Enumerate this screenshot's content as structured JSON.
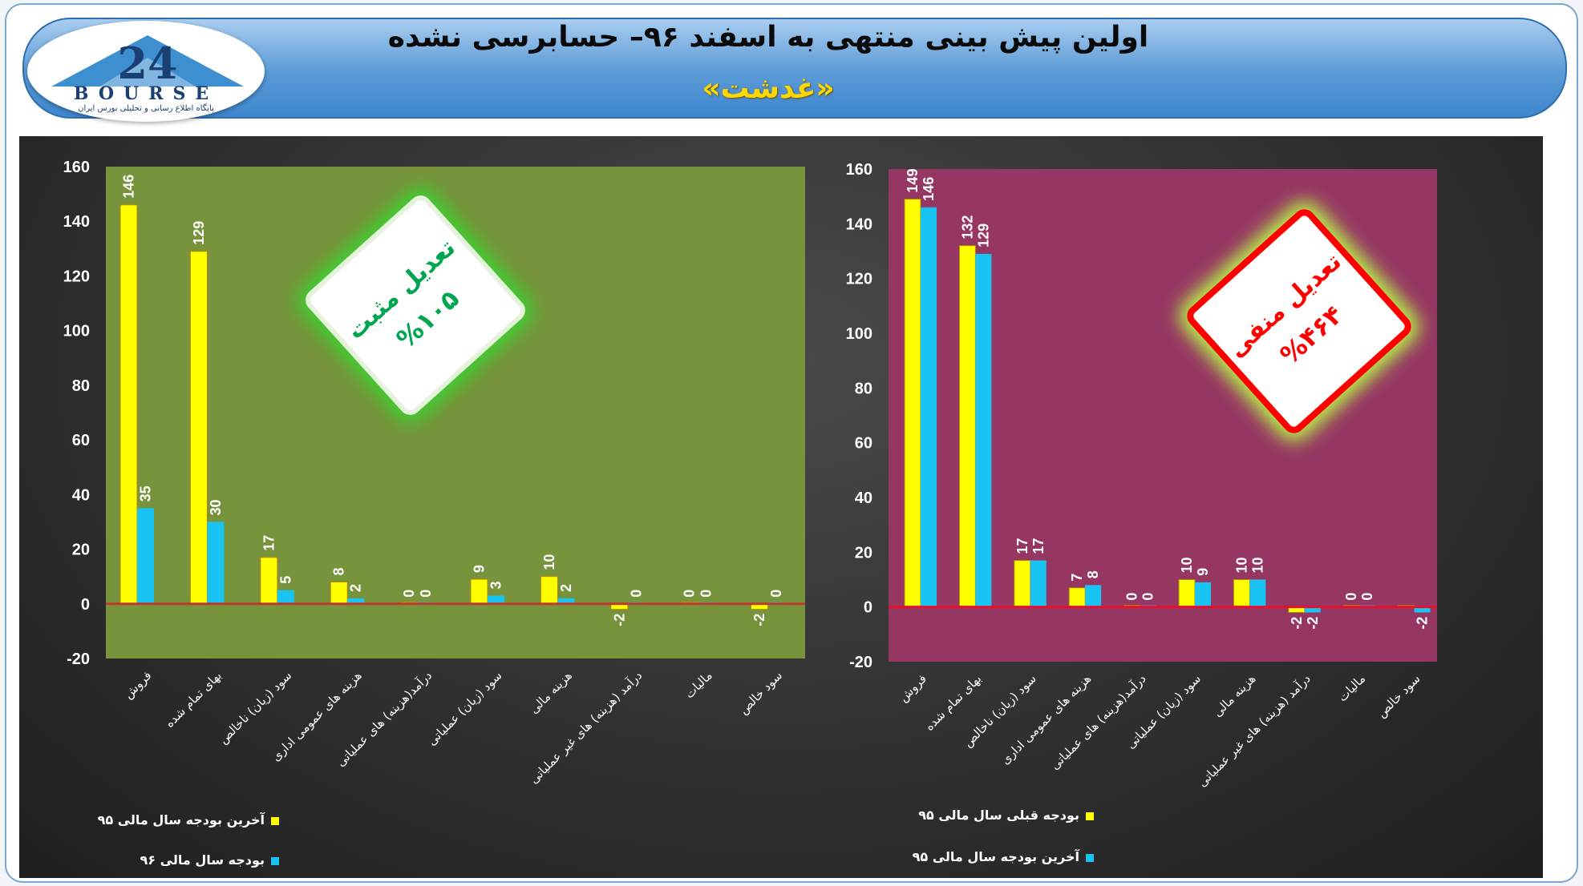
{
  "header": {
    "title": "اولین پیش بینی منتهی به اسفند ۹۶– حسابرسی نشده",
    "company": "«غدشت»",
    "logo_word": "BOURSE",
    "logo_number": "24",
    "logo_tagline": "پایگاه اطلاع رسانی و تحلیلی بورس ایران"
  },
  "colors": {
    "yellow": "#ffff00",
    "cyan": "#19c3f2",
    "green_plot": "#77933c",
    "magenta_plot": "#953762"
  },
  "stamps": {
    "left": {
      "line1": "تعدیل مثبت",
      "line2": "%۱۰۵",
      "color": "#00a550"
    },
    "right": {
      "line1": "تعدیل منفی",
      "line2": "%۴۶۴",
      "color": "#ff0000"
    }
  },
  "chart_data": [
    {
      "type": "bar",
      "background": "#77933c",
      "categories": [
        "فروش",
        "بهای تمام شده",
        "سود (زیان) ناخالص",
        "هزینه های عمومی اداری",
        "درآمد(هزینه) های عملیاتی",
        "سود (زیان) عملیاتی",
        "هزینه مالی",
        "درآمد (هزینه) های غیر عملیاتی",
        "مالیات",
        "سود خالص"
      ],
      "series": [
        {
          "name": "آخرین بودجه سال مالی ۹۵",
          "color": "#ffff00",
          "values": [
            146,
            129,
            17,
            8,
            0,
            9,
            10,
            -2,
            0,
            -2
          ],
          "labels": [
            "146",
            "129",
            "17",
            "8",
            "0",
            "9",
            "10",
            "-2",
            "0",
            "-2"
          ]
        },
        {
          "name": "بودجه سال مالی ۹۶",
          "color": "#19c3f2",
          "values": [
            35,
            30,
            5,
            2,
            0,
            3,
            2,
            0,
            0,
            0
          ],
          "labels": [
            "35",
            "30",
            "5",
            "2",
            "0",
            "3",
            "2",
            "0",
            "0",
            "0"
          ]
        }
      ],
      "yticks": [
        "160",
        "140",
        "120",
        "100",
        "80",
        "60",
        "40",
        "20",
        "0",
        "-20"
      ],
      "ylim": [
        -20,
        160
      ],
      "legend": "bottom-left"
    },
    {
      "type": "bar",
      "background": "#953762",
      "categories": [
        "فروش",
        "بهای تمام شده",
        "سود (زیان) ناخالص",
        "هزینه های عمومی اداری",
        "درآمد(هزینه) های عملیاتی",
        "سود (زیان) عملیاتی",
        "هزینه مالی",
        "درآمد (هزینه) های غیر عملیاتی",
        "مالیات",
        "سود خالص"
      ],
      "series": [
        {
          "name": "بودجه قبلی سال مالی ۹۵",
          "color": "#ffff00",
          "values": [
            149,
            132,
            17,
            7,
            0,
            10,
            10,
            -2,
            0,
            0
          ],
          "labels": [
            "149",
            "132",
            "17",
            "7",
            "0",
            "10",
            "10",
            "-2",
            "0",
            ""
          ]
        },
        {
          "name": "آخرین بودجه سال مالی ۹۵",
          "color": "#19c3f2",
          "values": [
            146,
            129,
            17,
            8,
            0,
            9,
            10,
            -2,
            0,
            -2
          ],
          "labels": [
            "146",
            "129",
            "17",
            "8",
            "0",
            "9",
            "10",
            "-2",
            "0",
            "-2"
          ]
        }
      ],
      "yticks": [
        "160",
        "140",
        "120",
        "100",
        "80",
        "60",
        "40",
        "20",
        "0",
        "-20"
      ],
      "ylim": [
        -20,
        160
      ],
      "legend": "bottom-left"
    }
  ]
}
